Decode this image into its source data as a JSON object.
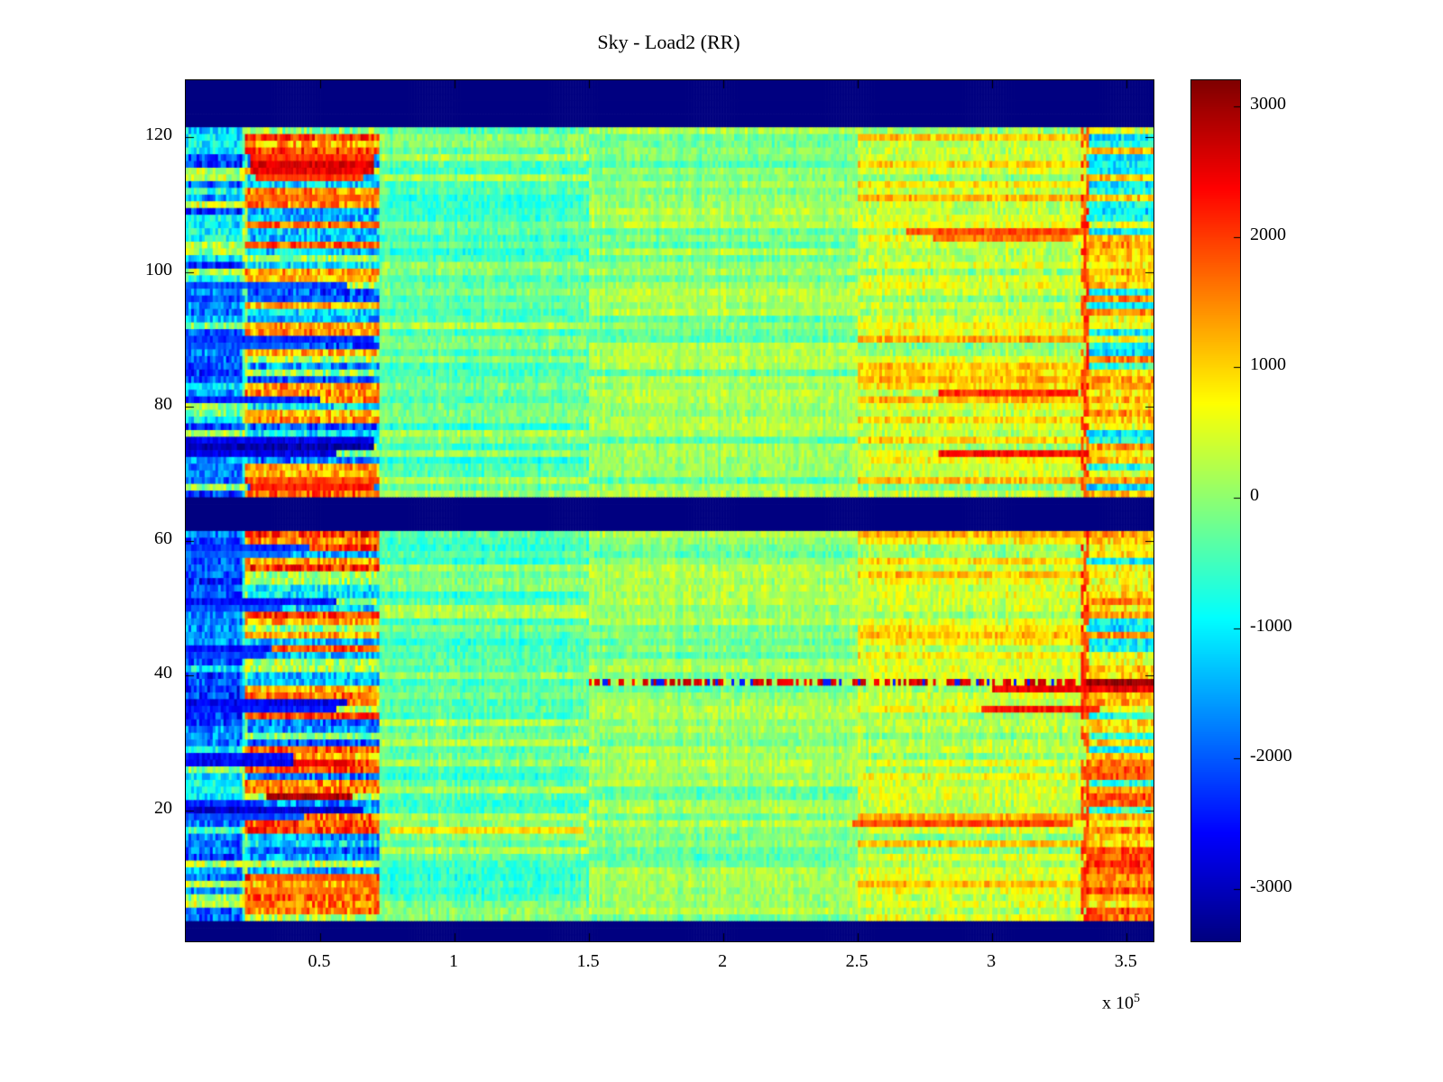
{
  "figure": {
    "background": "#ffffff",
    "x_exponent_base": "x 10",
    "x_exponent_power": "5"
  },
  "chart_data": {
    "type": "heatmap",
    "title": "Sky - Load2 (RR)",
    "colormap": "jet",
    "x_range": [
      0,
      360000
    ],
    "y_range": [
      0.5,
      128.5
    ],
    "clim": [
      -3400,
      3200
    ],
    "grid_rows": 128,
    "grid_cols": 360,
    "seed": 987654321,
    "x_ticks": [
      {
        "value": 50000,
        "label": "0.5"
      },
      {
        "value": 100000,
        "label": "1"
      },
      {
        "value": 150000,
        "label": "1.5"
      },
      {
        "value": 200000,
        "label": "2"
      },
      {
        "value": 250000,
        "label": "2.5"
      },
      {
        "value": 300000,
        "label": "3"
      },
      {
        "value": 350000,
        "label": "3.5"
      }
    ],
    "y_ticks": [
      {
        "value": 20,
        "label": "20"
      },
      {
        "value": 40,
        "label": "40"
      },
      {
        "value": 60,
        "label": "60"
      },
      {
        "value": 80,
        "label": "80"
      },
      {
        "value": 100,
        "label": "100"
      },
      {
        "value": 120,
        "label": "120"
      }
    ],
    "colorbar_ticks": [
      {
        "value": 3000,
        "label": "3000"
      },
      {
        "value": 2000,
        "label": "2000"
      },
      {
        "value": 1000,
        "label": "1000"
      },
      {
        "value": 0,
        "label": "0"
      },
      {
        "value": -1000,
        "label": "-1000"
      },
      {
        "value": -2000,
        "label": "-2000"
      },
      {
        "value": -3000,
        "label": "-3000"
      }
    ],
    "dark_bands_rows": [
      [
        121.8,
        128.5
      ],
      [
        61.8,
        66.5
      ],
      [
        0.5,
        3.6
      ]
    ],
    "x_regions": [
      {
        "name": "left-edge-blue",
        "x0": 0,
        "x1": 22000,
        "noise": 620,
        "modes": [
          {
            "p": 0.55,
            "base": -1500,
            "spread": -900
          },
          {
            "p": 0.23,
            "base": -700,
            "spread": -500
          },
          {
            "p": 0.22,
            "base": -150,
            "spread": 550
          }
        ]
      },
      {
        "name": "left-striped",
        "x0": 22000,
        "x1": 72000,
        "noise": 700,
        "modes": [
          {
            "p": 0.36,
            "base": 1100,
            "spread": 1000
          },
          {
            "p": 0.42,
            "base": -1000,
            "spread": -1100
          },
          {
            "p": 0.22,
            "base": -200,
            "spread": 500
          }
        ]
      },
      {
        "name": "mid-cyan",
        "x0": 72000,
        "x1": 150000,
        "noise": 330,
        "modes": [
          {
            "p": 0.62,
            "base": -700,
            "spread": 450
          },
          {
            "p": 0.38,
            "base": -250,
            "spread": 500
          }
        ]
      },
      {
        "name": "mid-green",
        "x0": 150000,
        "x1": 250000,
        "noise": 300,
        "modes": [
          {
            "p": 0.7,
            "base": -60,
            "spread": 360
          },
          {
            "p": 0.3,
            "base": -430,
            "spread": 300
          }
        ]
      },
      {
        "name": "right-yellow",
        "x0": 250000,
        "x1": 335000,
        "noise": 380,
        "modes": [
          {
            "p": 0.5,
            "base": 200,
            "spread": 400
          },
          {
            "p": 0.32,
            "base": 550,
            "spread": 750
          },
          {
            "p": 0.18,
            "base": -150,
            "spread": 300
          }
        ]
      },
      {
        "name": "far-right-mixed",
        "x0": 335000,
        "x1": 360000,
        "noise": 520,
        "row_zones": [
          {
            "rows": [
              108,
              128
            ],
            "modes": [
              {
                "p": 0.72,
                "base": -700,
                "spread": -500
              },
              {
                "p": 0.28,
                "base": 500,
                "spread": 700
              }
            ]
          },
          {
            "rows": [
              32,
              107
            ],
            "modes": [
              {
                "p": 0.25,
                "base": -600,
                "spread": -500
              },
              {
                "p": 0.75,
                "base": 550,
                "spread": 1000
              }
            ]
          },
          {
            "rows": [
              1,
              31
            ],
            "modes": [
              {
                "p": 0.12,
                "base": -400,
                "spread": -400
              },
              {
                "p": 0.88,
                "base": 800,
                "spread": 1300
              }
            ]
          }
        ]
      }
    ],
    "vertical_lines": [
      {
        "x": 22000,
        "halfwidth": 1300,
        "type": "lighten",
        "delta": 1100
      },
      {
        "x": 334500,
        "halfwidth": 1500,
        "type": "red",
        "value": 2000
      }
    ],
    "feature_rows": [
      {
        "row": 117,
        "x0": 24000,
        "x1": 70000,
        "value": 2100
      },
      {
        "row": 116,
        "x0": 24000,
        "x1": 70000,
        "value": 2600
      },
      {
        "row": 115,
        "x0": 24000,
        "x1": 70000,
        "value": 2500
      },
      {
        "row": 114,
        "x0": 26000,
        "x1": 66000,
        "value": 2000
      },
      {
        "row": 111,
        "x0": 24000,
        "x1": 70000,
        "value": 1700
      },
      {
        "row": 106,
        "x0": 268000,
        "x1": 336000,
        "value": 1900
      },
      {
        "row": 105,
        "x0": 278000,
        "x1": 330000,
        "value": 1600
      },
      {
        "row": 98,
        "x0": 0,
        "x1": 60000,
        "value": -2100
      },
      {
        "row": 90,
        "x0": 0,
        "x1": 70000,
        "value": -2300
      },
      {
        "row": 89,
        "x0": 0,
        "x1": 40000,
        "value": -2000
      },
      {
        "row": 82,
        "x0": 280000,
        "x1": 332000,
        "value": 2100
      },
      {
        "row": 81,
        "x0": 0,
        "x1": 50000,
        "value": -2400
      },
      {
        "row": 75,
        "x0": 0,
        "x1": 70000,
        "value": -2700
      },
      {
        "row": 74,
        "x0": 0,
        "x1": 70000,
        "value": -3100
      },
      {
        "row": 73,
        "x0": 0,
        "x1": 56000,
        "value": -2800
      },
      {
        "row": 73,
        "x0": 280000,
        "x1": 336000,
        "value": 2300
      },
      {
        "row": 69,
        "x0": 26000,
        "x1": 72000,
        "value": 1900
      },
      {
        "row": 68,
        "x0": 24000,
        "x1": 70000,
        "value": 2200
      },
      {
        "row": 59,
        "x0": 0,
        "x1": 46000,
        "value": -2300
      },
      {
        "row": 58,
        "x0": 0,
        "x1": 40000,
        "value": -1900
      },
      {
        "row": 51,
        "x0": 0,
        "x1": 56000,
        "value": -2500
      },
      {
        "row": 50,
        "x0": 0,
        "x1": 36000,
        "value": -2100
      },
      {
        "row": 44,
        "x0": 0,
        "x1": 32000,
        "value": -2500
      },
      {
        "row": 43,
        "x0": 0,
        "x1": 30000,
        "value": -2200
      },
      {
        "row": 39,
        "x0": 150000,
        "x1": 335000,
        "value": 2600,
        "dotted": true
      },
      {
        "row": 39,
        "x0": 335000,
        "x1": 360000,
        "value": 3100
      },
      {
        "row": 38,
        "x0": 300000,
        "x1": 360000,
        "value": 2500
      },
      {
        "row": 36,
        "x0": 0,
        "x1": 60000,
        "value": -2700
      },
      {
        "row": 35,
        "x0": 0,
        "x1": 56000,
        "value": -2400
      },
      {
        "row": 35,
        "x0": 296000,
        "x1": 340000,
        "value": 2300
      },
      {
        "row": 28,
        "x0": 0,
        "x1": 40000,
        "value": -2500
      },
      {
        "row": 27,
        "x0": 0,
        "x1": 40000,
        "value": -2600
      },
      {
        "row": 27,
        "x0": 44000,
        "x1": 62000,
        "value": 2400
      },
      {
        "row": 22,
        "x0": 30000,
        "x1": 62000,
        "value": 2900
      },
      {
        "row": 21,
        "x0": 0,
        "x1": 28000,
        "value": -2300
      },
      {
        "row": 20,
        "x0": 0,
        "x1": 66000,
        "value": -2900
      },
      {
        "row": 19,
        "x0": 0,
        "x1": 44000,
        "value": -2100
      },
      {
        "row": 18,
        "x0": 248000,
        "x1": 330000,
        "value": 1900
      },
      {
        "row": 17,
        "x0": 76000,
        "x1": 148000,
        "value": 900
      },
      {
        "row": 10,
        "x0": 26000,
        "x1": 70000,
        "value": 1800
      },
      {
        "row": 8,
        "x0": 24000,
        "x1": 66000,
        "value": 1600
      }
    ]
  }
}
